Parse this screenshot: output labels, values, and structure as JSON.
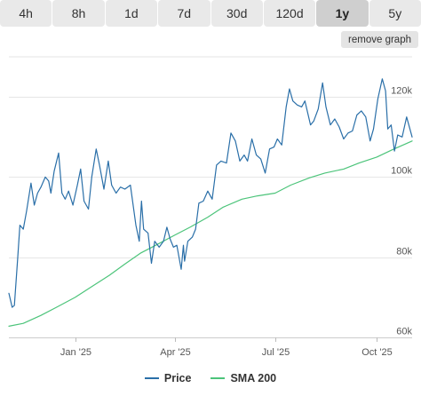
{
  "tabs": [
    {
      "label": "4h",
      "active": false
    },
    {
      "label": "8h",
      "active": false
    },
    {
      "label": "1d",
      "active": false
    },
    {
      "label": "7d",
      "active": false
    },
    {
      "label": "30d",
      "active": false
    },
    {
      "label": "120d",
      "active": false
    },
    {
      "label": "1y",
      "active": true
    },
    {
      "label": "5y",
      "active": false
    }
  ],
  "remove_graph_label": "remove graph",
  "colors": {
    "price": "#2a6fa8",
    "sma": "#4cc47a",
    "grid": "#e6e6e6",
    "tick": "#555555"
  },
  "chart_data": {
    "type": "line",
    "title": "",
    "xlabel": "",
    "ylabel": "",
    "ylim": [
      60000,
      130000
    ],
    "xlim": [
      "2024-11-02",
      "2025-11-02"
    ],
    "x_ticks": [
      {
        "date": "2025-01-01",
        "label": "Jan '25"
      },
      {
        "date": "2025-04-01",
        "label": "Apr '25"
      },
      {
        "date": "2025-07-01",
        "label": "Jul '25"
      },
      {
        "date": "2025-10-01",
        "label": "Oct '25"
      }
    ],
    "y_ticks": [
      {
        "value": 60000,
        "label": "60k"
      },
      {
        "value": 80000,
        "label": "80k"
      },
      {
        "value": 100000,
        "label": "100k"
      },
      {
        "value": 120000,
        "label": "120k"
      }
    ],
    "grid": true,
    "legend_position": "bottom",
    "series": [
      {
        "name": "Price",
        "color": "#2a6fa8",
        "points": [
          [
            "2024-11-02",
            71000
          ],
          [
            "2024-11-05",
            67500
          ],
          [
            "2024-11-07",
            68000
          ],
          [
            "2024-11-10",
            80000
          ],
          [
            "2024-11-12",
            88000
          ],
          [
            "2024-11-15",
            87000
          ],
          [
            "2024-11-18",
            91500
          ],
          [
            "2024-11-22",
            98500
          ],
          [
            "2024-11-25",
            93000
          ],
          [
            "2024-11-28",
            96000
          ],
          [
            "2024-12-01",
            97500
          ],
          [
            "2024-12-05",
            100000
          ],
          [
            "2024-12-08",
            99000
          ],
          [
            "2024-12-10",
            96000
          ],
          [
            "2024-12-13",
            101500
          ],
          [
            "2024-12-17",
            106000
          ],
          [
            "2024-12-20",
            96000
          ],
          [
            "2024-12-23",
            94500
          ],
          [
            "2024-12-26",
            96500
          ],
          [
            "2024-12-30",
            93000
          ],
          [
            "2025-01-03",
            98000
          ],
          [
            "2025-01-06",
            102000
          ],
          [
            "2025-01-09",
            94000
          ],
          [
            "2025-01-13",
            92000
          ],
          [
            "2025-01-16",
            100000
          ],
          [
            "2025-01-20",
            107000
          ],
          [
            "2025-01-23",
            103000
          ],
          [
            "2025-01-27",
            97000
          ],
          [
            "2025-01-31",
            104000
          ],
          [
            "2025-02-03",
            98000
          ],
          [
            "2025-02-07",
            96000
          ],
          [
            "2025-02-11",
            97500
          ],
          [
            "2025-02-15",
            97000
          ],
          [
            "2025-02-20",
            98000
          ],
          [
            "2025-02-25",
            88000
          ],
          [
            "2025-02-28",
            84000
          ],
          [
            "2025-03-02",
            94000
          ],
          [
            "2025-03-04",
            87000
          ],
          [
            "2025-03-08",
            86000
          ],
          [
            "2025-03-11",
            78500
          ],
          [
            "2025-03-14",
            84000
          ],
          [
            "2025-03-18",
            82500
          ],
          [
            "2025-03-22",
            84000
          ],
          [
            "2025-03-25",
            87500
          ],
          [
            "2025-03-28",
            84500
          ],
          [
            "2025-03-31",
            82500
          ],
          [
            "2025-04-03",
            83000
          ],
          [
            "2025-04-07",
            77000
          ],
          [
            "2025-04-09",
            83000
          ],
          [
            "2025-04-10",
            79000
          ],
          [
            "2025-04-13",
            84000
          ],
          [
            "2025-04-17",
            85000
          ],
          [
            "2025-04-20",
            87000
          ],
          [
            "2025-04-23",
            93500
          ],
          [
            "2025-04-27",
            94000
          ],
          [
            "2025-05-01",
            96500
          ],
          [
            "2025-05-05",
            94500
          ],
          [
            "2025-05-09",
            103000
          ],
          [
            "2025-05-13",
            104000
          ],
          [
            "2025-05-18",
            103500
          ],
          [
            "2025-05-22",
            111000
          ],
          [
            "2025-05-26",
            109000
          ],
          [
            "2025-05-30",
            104000
          ],
          [
            "2025-06-03",
            105500
          ],
          [
            "2025-06-06",
            104000
          ],
          [
            "2025-06-10",
            109500
          ],
          [
            "2025-06-14",
            105500
          ],
          [
            "2025-06-18",
            104500
          ],
          [
            "2025-06-22",
            101000
          ],
          [
            "2025-06-26",
            107000
          ],
          [
            "2025-06-30",
            107500
          ],
          [
            "2025-07-03",
            109500
          ],
          [
            "2025-07-07",
            108000
          ],
          [
            "2025-07-11",
            117500
          ],
          [
            "2025-07-14",
            122000
          ],
          [
            "2025-07-17",
            119000
          ],
          [
            "2025-07-21",
            118000
          ],
          [
            "2025-07-25",
            117500
          ],
          [
            "2025-07-28",
            119000
          ],
          [
            "2025-08-02",
            113000
          ],
          [
            "2025-08-05",
            114000
          ],
          [
            "2025-08-09",
            117000
          ],
          [
            "2025-08-13",
            123500
          ],
          [
            "2025-08-16",
            117500
          ],
          [
            "2025-08-20",
            113000
          ],
          [
            "2025-08-24",
            114500
          ],
          [
            "2025-08-28",
            112500
          ],
          [
            "2025-09-01",
            109500
          ],
          [
            "2025-09-05",
            111000
          ],
          [
            "2025-09-09",
            111500
          ],
          [
            "2025-09-13",
            115500
          ],
          [
            "2025-09-17",
            116500
          ],
          [
            "2025-09-21",
            115000
          ],
          [
            "2025-09-25",
            109000
          ],
          [
            "2025-09-28",
            112000
          ],
          [
            "2025-10-02",
            119500
          ],
          [
            "2025-10-06",
            124500
          ],
          [
            "2025-10-09",
            121500
          ],
          [
            "2025-10-11",
            112000
          ],
          [
            "2025-10-14",
            113000
          ],
          [
            "2025-10-17",
            106500
          ],
          [
            "2025-10-20",
            110500
          ],
          [
            "2025-10-24",
            110000
          ],
          [
            "2025-10-28",
            115000
          ],
          [
            "2025-11-02",
            110000
          ]
        ]
      },
      {
        "name": "SMA 200",
        "color": "#4cc47a",
        "points": [
          [
            "2024-11-02",
            62800
          ],
          [
            "2024-11-15",
            63500
          ],
          [
            "2024-12-01",
            65500
          ],
          [
            "2024-12-15",
            67500
          ],
          [
            "2025-01-01",
            70000
          ],
          [
            "2025-01-15",
            72500
          ],
          [
            "2025-02-01",
            75500
          ],
          [
            "2025-02-15",
            78300
          ],
          [
            "2025-03-01",
            81000
          ],
          [
            "2025-03-15",
            83000
          ],
          [
            "2025-04-01",
            85500
          ],
          [
            "2025-04-15",
            87500
          ],
          [
            "2025-05-01",
            90000
          ],
          [
            "2025-05-15",
            92500
          ],
          [
            "2025-06-01",
            94500
          ],
          [
            "2025-06-15",
            95300
          ],
          [
            "2025-07-01",
            96000
          ],
          [
            "2025-07-15",
            98000
          ],
          [
            "2025-08-01",
            99800
          ],
          [
            "2025-08-15",
            101000
          ],
          [
            "2025-09-01",
            102000
          ],
          [
            "2025-09-15",
            103500
          ],
          [
            "2025-10-01",
            105000
          ],
          [
            "2025-10-15",
            106800
          ],
          [
            "2025-11-02",
            109000
          ]
        ]
      }
    ]
  }
}
